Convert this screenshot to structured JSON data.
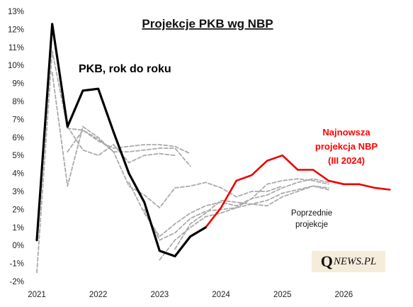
{
  "chart_data": {
    "type": "line",
    "title": "Projekcje  PKB  wg  NBP",
    "xlabel": "",
    "ylabel": "",
    "x_ticks": [
      "2021",
      "2022",
      "2023",
      "2024",
      "2025",
      "2026"
    ],
    "y_ticks": [
      "-2%",
      "-1%",
      "0%",
      "1%",
      "2%",
      "3%",
      "4%",
      "5%",
      "6%",
      "7%",
      "8%",
      "9%",
      "10%",
      "11%",
      "12%",
      "13%"
    ],
    "ylim": [
      -2,
      13
    ],
    "xlim": [
      2021.0,
      2027.0
    ],
    "annotations": {
      "actual": "PKB, rok do roku",
      "latest_line1": "Najnowsza",
      "latest_line2": "projekcja NBP",
      "latest_line3": "(III 2024)",
      "previous_line1": "Poprzednie",
      "previous_line2": "projekcje"
    },
    "colors": {
      "actual": "#000000",
      "latest": "#ee0000",
      "previous": "#aaaaaa"
    },
    "series": [
      {
        "name": "PKB, rok do roku",
        "style": "actual",
        "points": [
          [
            2021.0,
            0.3
          ],
          [
            2021.25,
            12.3
          ],
          [
            2021.5,
            6.6
          ],
          [
            2021.75,
            8.6
          ],
          [
            2022.0,
            8.7
          ],
          [
            2022.25,
            6.3
          ],
          [
            2022.5,
            4.0
          ],
          [
            2022.75,
            2.4
          ],
          [
            2023.0,
            -0.3
          ],
          [
            2023.25,
            -0.6
          ],
          [
            2023.5,
            0.5
          ],
          [
            2023.75,
            1.0
          ]
        ]
      },
      {
        "name": "Najnowsza projekcja NBP (III 2024)",
        "style": "latest",
        "points": [
          [
            2023.75,
            1.0
          ],
          [
            2024.0,
            2.1
          ],
          [
            2024.25,
            3.6
          ],
          [
            2024.5,
            3.9
          ],
          [
            2024.75,
            4.7
          ],
          [
            2025.0,
            5.0
          ],
          [
            2025.25,
            4.2
          ],
          [
            2025.5,
            4.2
          ],
          [
            2025.75,
            3.6
          ],
          [
            2026.0,
            3.4
          ],
          [
            2026.25,
            3.4
          ],
          [
            2026.5,
            3.2
          ],
          [
            2026.75,
            3.1
          ]
        ]
      },
      {
        "name": "",
        "style": "previous",
        "points": [
          [
            2021.0,
            -1.5
          ],
          [
            2021.25,
            10.8
          ],
          [
            2021.5,
            6.5
          ],
          [
            2021.75,
            6.4
          ],
          [
            2022.0,
            5.8
          ],
          [
            2022.25,
            5.4
          ],
          [
            2022.5,
            5.5
          ],
          [
            2022.75,
            5.6
          ],
          [
            2023.0,
            5.6
          ],
          [
            2023.25,
            5.5
          ],
          [
            2023.5,
            5.1
          ]
        ]
      },
      {
        "name": "",
        "style": "previous",
        "points": [
          [
            2021.25,
            9.6
          ],
          [
            2021.5,
            3.3
          ],
          [
            2021.75,
            6.6
          ],
          [
            2022.0,
            6.0
          ],
          [
            2022.25,
            5.2
          ],
          [
            2022.5,
            5.2
          ],
          [
            2022.75,
            5.3
          ],
          [
            2023.0,
            5.4
          ],
          [
            2023.25,
            5.4
          ],
          [
            2023.5,
            4.4
          ]
        ]
      },
      {
        "name": "",
        "style": "previous",
        "points": [
          [
            2021.5,
            6.6
          ],
          [
            2021.75,
            5.3
          ],
          [
            2022.0,
            5.0
          ],
          [
            2022.25,
            5.6
          ],
          [
            2022.5,
            4.6
          ],
          [
            2022.75,
            5.0
          ],
          [
            2023.0,
            5.1
          ],
          [
            2023.25,
            5.0
          ]
        ]
      },
      {
        "name": "",
        "style": "previous",
        "points": [
          [
            2021.5,
            5.2
          ],
          [
            2021.75,
            6.4
          ],
          [
            2022.0,
            5.9
          ],
          [
            2022.25,
            5.2
          ],
          [
            2022.5,
            3.3
          ],
          [
            2022.75,
            2.8
          ],
          [
            2023.0,
            2.1
          ],
          [
            2023.25,
            3.2
          ],
          [
            2023.5,
            3.3
          ],
          [
            2023.75,
            3.5
          ],
          [
            2024.0,
            3.2
          ],
          [
            2024.25,
            2.7
          ],
          [
            2024.5,
            3.0
          ],
          [
            2024.75,
            3.0
          ],
          [
            2025.0,
            3.3
          ]
        ]
      },
      {
        "name": "",
        "style": "previous",
        "points": [
          [
            2022.5,
            3.5
          ],
          [
            2022.75,
            1.8
          ],
          [
            2023.0,
            0.5
          ],
          [
            2023.25,
            1.2
          ],
          [
            2023.5,
            1.8
          ],
          [
            2023.75,
            2.2
          ],
          [
            2024.0,
            2.4
          ],
          [
            2024.25,
            2.2
          ],
          [
            2024.5,
            2.6
          ],
          [
            2024.75,
            2.8
          ],
          [
            2025.0,
            3.2
          ],
          [
            2025.25,
            3.5
          ],
          [
            2025.5,
            3.7
          ],
          [
            2025.75,
            3.5
          ]
        ]
      },
      {
        "name": "",
        "style": "previous",
        "points": [
          [
            2022.75,
            2.0
          ],
          [
            2023.0,
            0.3
          ],
          [
            2023.25,
            0.7
          ],
          [
            2023.5,
            1.5
          ],
          [
            2023.75,
            1.9
          ],
          [
            2024.0,
            2.0
          ],
          [
            2024.25,
            2.1
          ],
          [
            2024.5,
            2.6
          ],
          [
            2024.75,
            3.4
          ],
          [
            2025.0,
            3.6
          ],
          [
            2025.25,
            3.7
          ],
          [
            2025.5,
            3.6
          ],
          [
            2025.75,
            3.4
          ]
        ]
      },
      {
        "name": "",
        "style": "previous",
        "points": [
          [
            2023.0,
            -0.8
          ],
          [
            2023.25,
            0.3
          ],
          [
            2023.5,
            1.0
          ],
          [
            2023.75,
            1.6
          ],
          [
            2024.0,
            1.8
          ],
          [
            2024.25,
            2.1
          ],
          [
            2024.5,
            2.3
          ],
          [
            2024.75,
            2.2
          ],
          [
            2025.0,
            2.7
          ],
          [
            2025.25,
            3.0
          ],
          [
            2025.5,
            3.3
          ],
          [
            2025.75,
            3.2
          ]
        ]
      },
      {
        "name": "",
        "style": "previous",
        "points": [
          [
            2023.25,
            -0.2
          ],
          [
            2023.5,
            1.2
          ],
          [
            2023.75,
            1.8
          ],
          [
            2024.0,
            2.5
          ],
          [
            2024.25,
            2.4
          ],
          [
            2024.5,
            2.3
          ],
          [
            2024.75,
            2.5
          ],
          [
            2025.0,
            2.9
          ],
          [
            2025.25,
            3.1
          ],
          [
            2025.5,
            3.3
          ],
          [
            2025.75,
            3.1
          ]
        ]
      }
    ]
  },
  "logo": {
    "q": "Q",
    "rest": "NEWS.PL"
  }
}
